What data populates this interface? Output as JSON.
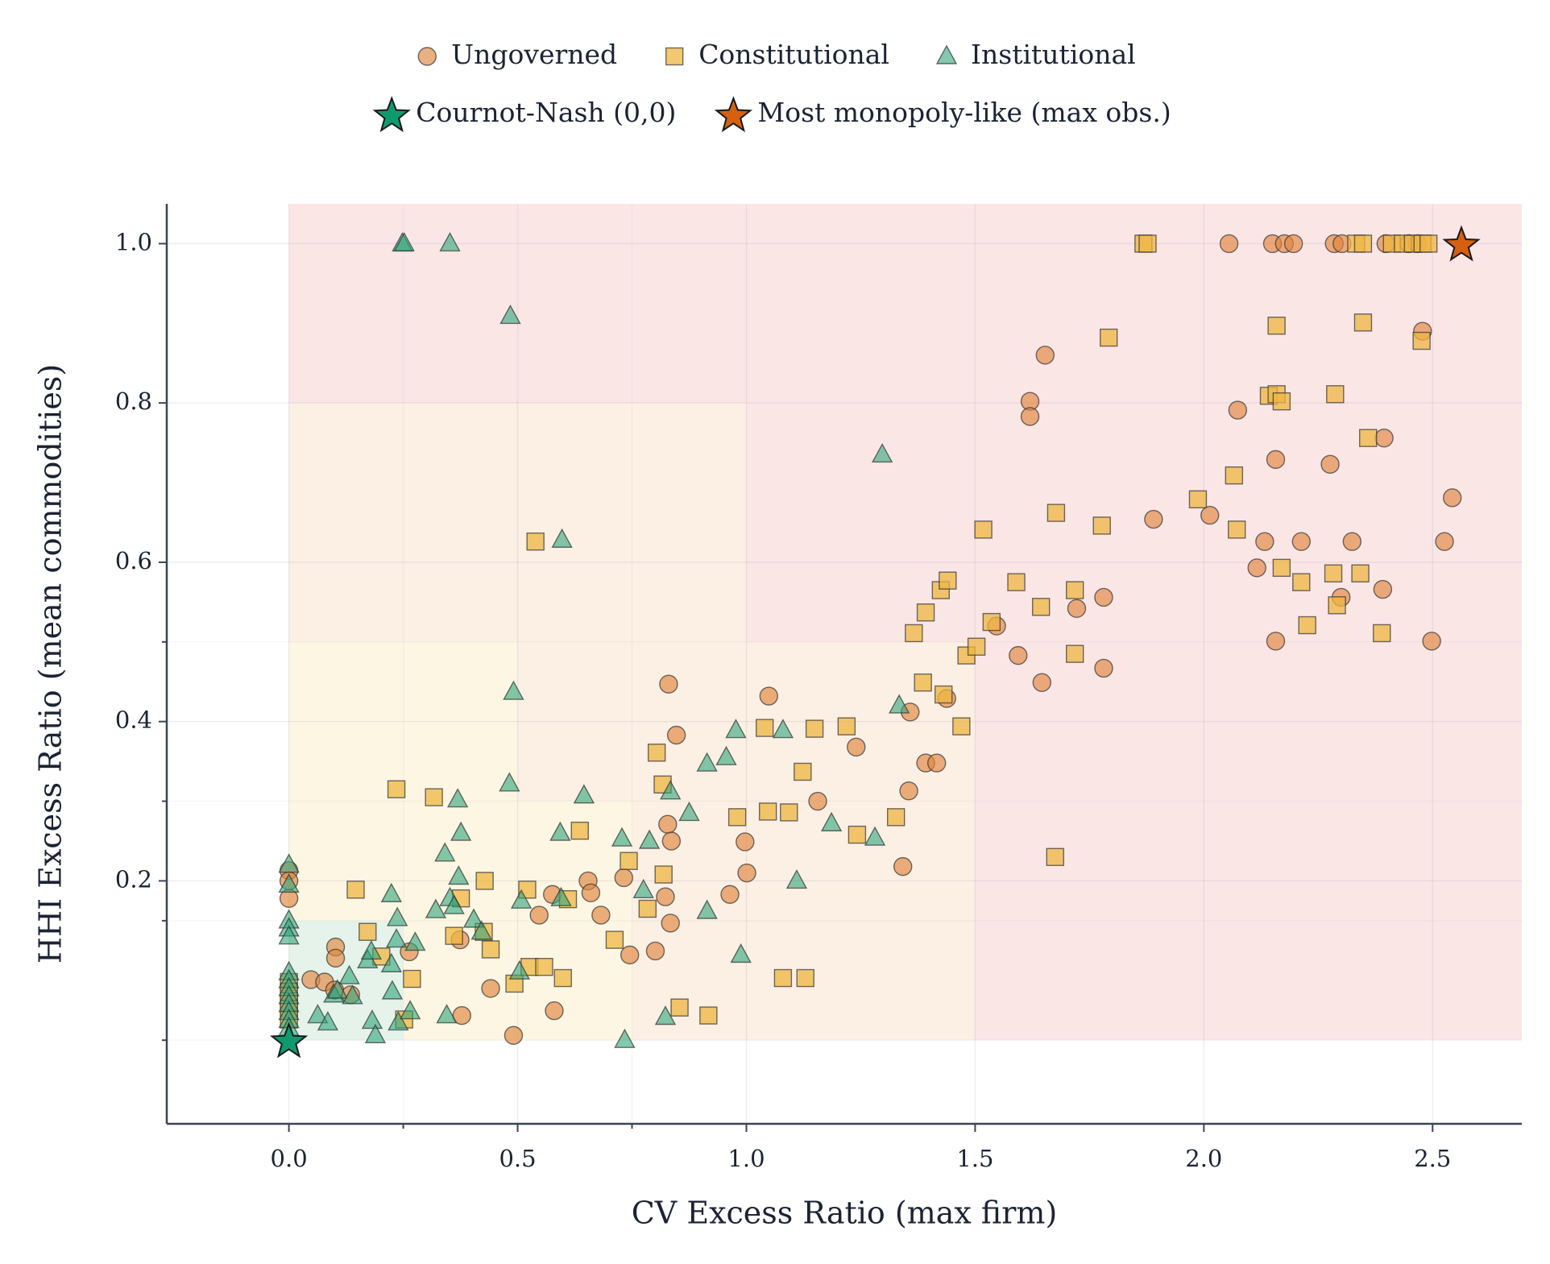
{
  "chart_data": {
    "type": "scatter",
    "xlabel": "CV Excess Ratio (max firm)",
    "ylabel": "HHI Excess Ratio (mean commodities)",
    "xlim": [
      -0.267,
      2.695
    ],
    "ylim": [
      -0.105,
      1.05
    ],
    "xticks": [
      {
        "value": 0,
        "label": "0.0"
      },
      0.5,
      {
        "value": 1,
        "label": "1.0"
      },
      1.5,
      {
        "value": 2,
        "label": "2.0"
      },
      2.5
    ],
    "yticks": [
      0.2,
      0.4,
      0.6,
      0.8,
      {
        "value": 1,
        "label": "1.0"
      }
    ],
    "xminor": [
      0.25,
      0.75
    ],
    "yminor": [
      0,
      0.15,
      0.3,
      0.5
    ],
    "grid": true,
    "legend": "top",
    "regions": [
      {
        "xmax": 2.695,
        "ymax": 1.05,
        "color": "#fbe6e6"
      },
      {
        "xmax": 1.5,
        "ymax": 0.5,
        "color": "#fcefe4"
      },
      {
        "xmax": 1.0,
        "ymax": 0.8,
        "color": "#fcefe4"
      },
      {
        "xmax": 0.75,
        "ymax": 0.3,
        "color": "#fdf6e2"
      },
      {
        "xmax": 0.5,
        "ymax": 0.5,
        "color": "#fdf6e2"
      },
      {
        "xmax": 0.25,
        "ymax": 0.15,
        "color": "#e5f3ea"
      }
    ],
    "series": [
      {
        "name": "Ungoverned",
        "marker": "circle",
        "color": "#e0853f",
        "x": [
          0,
          0,
          0,
          0.048,
          0.078,
          0.102,
          0.102,
          0.1,
          0.135,
          0.263,
          0.374,
          0.378,
          0.441,
          0.491,
          0.547,
          0.576,
          0.58,
          0.654,
          0.66,
          0.682,
          0.732,
          0.745,
          0.801,
          0.83,
          0.828,
          0.823,
          0.836,
          0.834,
          0.847,
          0.964,
          0.997,
          1.001,
          1.049,
          1.156,
          1.24,
          1.342,
          1.358,
          1.355,
          1.392,
          1.416,
          1.438,
          1.547,
          1.594,
          1.62,
          1.62,
          1.646,
          1.653,
          1.722,
          1.781,
          1.781,
          1.89,
          2.013,
          2.055,
          2.074,
          2.116,
          2.133,
          2.15,
          2.157,
          2.157,
          2.176,
          2.196,
          2.213,
          2.276,
          2.285,
          2.302,
          2.3,
          2.324,
          2.391,
          2.394,
          2.398,
          2.478,
          2.498,
          2.526,
          2.543,
          2.448,
          2.467
        ],
        "y": [
          0.213,
          0.2,
          0.178,
          0.076,
          0.073,
          0.117,
          0.103,
          0.063,
          0.057,
          0.111,
          0.126,
          0.031,
          0.065,
          0.006,
          0.157,
          0.183,
          0.037,
          0.2,
          0.185,
          0.157,
          0.204,
          0.107,
          0.112,
          0.447,
          0.271,
          0.18,
          0.25,
          0.147,
          0.383,
          0.183,
          0.249,
          0.21,
          0.432,
          0.3,
          0.368,
          0.218,
          0.412,
          0.313,
          0.348,
          0.348,
          0.429,
          0.52,
          0.483,
          0.802,
          0.783,
          0.449,
          0.86,
          0.542,
          0.556,
          0.467,
          0.654,
          0.659,
          1.0,
          0.791,
          0.593,
          0.626,
          1.0,
          0.729,
          0.501,
          1.0,
          1.0,
          0.626,
          0.723,
          1.0,
          1.0,
          0.556,
          0.626,
          0.566,
          0.756,
          1.0,
          0.89,
          0.501,
          0.626,
          0.681,
          1.0,
          1.0
        ]
      },
      {
        "name": "Constitutional",
        "marker": "square",
        "color": "#eeb642",
        "x": [
          0,
          0,
          0,
          0,
          0,
          0.146,
          0.172,
          0.202,
          0.235,
          0.252,
          0.269,
          0.317,
          0.361,
          0.376,
          0.428,
          0.426,
          0.441,
          0.493,
          0.521,
          0.526,
          0.539,
          0.558,
          0.599,
          0.61,
          0.636,
          0.712,
          0.743,
          0.784,
          0.804,
          0.817,
          0.819,
          0.854,
          0.917,
          0.98,
          1.04,
          1.047,
          1.08,
          1.093,
          1.123,
          1.129,
          1.149,
          1.219,
          1.242,
          1.327,
          1.366,
          1.386,
          1.392,
          1.425,
          1.44,
          1.431,
          1.47,
          1.481,
          1.503,
          1.518,
          1.536,
          1.59,
          1.644,
          1.677,
          1.675,
          1.718,
          1.718,
          1.777,
          1.792,
          1.868,
          1.877,
          1.987,
          2.066,
          2.072,
          2.142,
          2.159,
          2.159,
          2.17,
          2.17,
          2.213,
          2.226,
          2.283,
          2.287,
          2.291,
          2.333,
          2.348,
          2.342,
          2.348,
          2.359,
          2.389,
          2.411,
          2.435,
          2.457,
          2.478,
          2.491,
          2.476
        ],
        "y": [
          0.073,
          0.061,
          0.049,
          0.039,
          0.026,
          0.189,
          0.136,
          0.105,
          0.315,
          0.026,
          0.077,
          0.305,
          0.131,
          0.178,
          0.2,
          0.136,
          0.114,
          0.071,
          0.189,
          0.092,
          0.626,
          0.092,
          0.078,
          0.177,
          0.263,
          0.126,
          0.225,
          0.165,
          0.361,
          0.321,
          0.208,
          0.041,
          0.031,
          0.28,
          0.392,
          0.287,
          0.078,
          0.286,
          0.337,
          0.078,
          0.391,
          0.394,
          0.258,
          0.28,
          0.511,
          0.449,
          0.537,
          0.565,
          0.577,
          0.434,
          0.394,
          0.483,
          0.494,
          0.641,
          0.525,
          0.575,
          0.544,
          0.662,
          0.23,
          0.565,
          0.485,
          0.646,
          0.882,
          1.0,
          1.0,
          0.679,
          0.709,
          0.641,
          0.809,
          0.897,
          0.811,
          0.802,
          0.593,
          0.575,
          0.521,
          0.586,
          0.811,
          0.546,
          1.0,
          1.0,
          0.586,
          0.901,
          0.756,
          0.511,
          1.0,
          1.0,
          1.0,
          1.0,
          1.0,
          0.878
        ]
      },
      {
        "name": "Institutional",
        "marker": "triangle",
        "color": "#2fa57c",
        "x": [
          0,
          0,
          0,
          0,
          0,
          0,
          0,
          0,
          0,
          0,
          0,
          0,
          0,
          0.063,
          0.085,
          0.098,
          0.106,
          0.132,
          0.139,
          0.172,
          0.18,
          0.182,
          0.189,
          0.224,
          0.224,
          0.226,
          0.237,
          0.235,
          0.239,
          0.248,
          0.252,
          0.265,
          0.276,
          0.321,
          0.341,
          0.345,
          0.352,
          0.352,
          0.361,
          0.369,
          0.371,
          0.376,
          0.404,
          0.421,
          0.484,
          0.482,
          0.491,
          0.508,
          0.504,
          0.593,
          0.595,
          0.597,
          0.645,
          0.728,
          0.734,
          0.775,
          0.788,
          0.823,
          0.834,
          0.875,
          0.914,
          0.914,
          0.956,
          0.977,
          0.988,
          1.08,
          1.11,
          1.186,
          1.281,
          1.297,
          1.334
        ],
        "y": [
          0.22,
          0.195,
          0.15,
          0.14,
          0.13,
          0.085,
          0.075,
          0.065,
          0.055,
          0.045,
          0.035,
          0.025,
          0.015,
          0.031,
          0.022,
          0.057,
          0.062,
          0.08,
          0.055,
          0.1,
          0.111,
          0.024,
          0.006,
          0.183,
          0.095,
          0.061,
          0.153,
          0.126,
          0.022,
          1.0,
          1.0,
          0.036,
          0.122,
          0.163,
          0.234,
          0.031,
          1.0,
          0.178,
          0.168,
          0.302,
          0.205,
          0.26,
          0.151,
          0.136,
          0.909,
          0.322,
          0.437,
          0.175,
          0.086,
          0.26,
          0.178,
          0.628,
          0.307,
          0.253,
          0.0,
          0.188,
          0.25,
          0.029,
          0.312,
          0.285,
          0.162,
          0.347,
          0.355,
          0.389,
          0.107,
          0.389,
          0.2,
          0.272,
          0.254,
          0.735,
          0.42
        ]
      },
      {
        "name": "Cournot-Nash (0,0)",
        "marker": "star",
        "color": "#0f9a6e",
        "x": [
          0
        ],
        "y": [
          0
        ]
      },
      {
        "name": "Most monopoly-like (max obs.)",
        "marker": "star",
        "color": "#d5600f",
        "x": [
          2.563
        ],
        "y": [
          1.0
        ]
      }
    ]
  }
}
